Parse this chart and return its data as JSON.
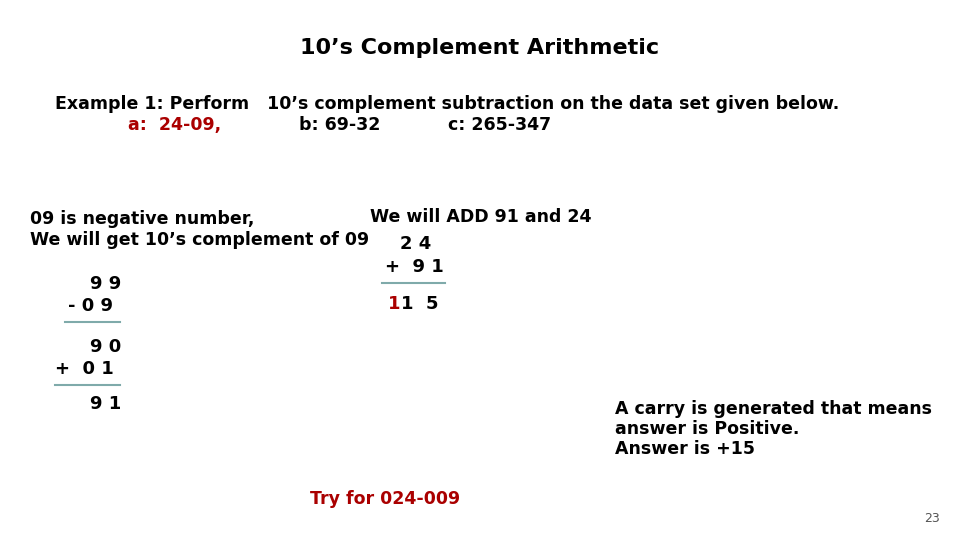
{
  "title": "10’s Complement Arithmetic",
  "title_color": "#000000",
  "title_fontsize": 16,
  "bg_color": "#ffffff",
  "example_line1": "Example 1: Perform   10’s complement subtraction on the data set given below.",
  "example_line2_red": "a:  24-09,",
  "example_line2_b": "b: 69-32",
  "example_line2_c": "c: 265-347",
  "left_text1": "09 is negative number,",
  "left_text2": "We will get 10’s complement of 09",
  "calc1_line1": "9 9",
  "calc1_line2": "- 0 9",
  "calc2_line1": "9 0",
  "calc2_line2": "+  0 1",
  "calc2_result": "9 1",
  "right_header": "We will ADD 91 and 24",
  "right_line1": "2 4",
  "right_line2": "+  9 1",
  "right_result_red": "1",
  "right_result_black": "1  5",
  "carry_text_1": "A carry is generated that means",
  "carry_text_2": "answer is Positive.",
  "carry_text_3": "Answer is +15",
  "try_text": "Try for 024-009",
  "page_num": "23",
  "line_color": "#7faaaa"
}
